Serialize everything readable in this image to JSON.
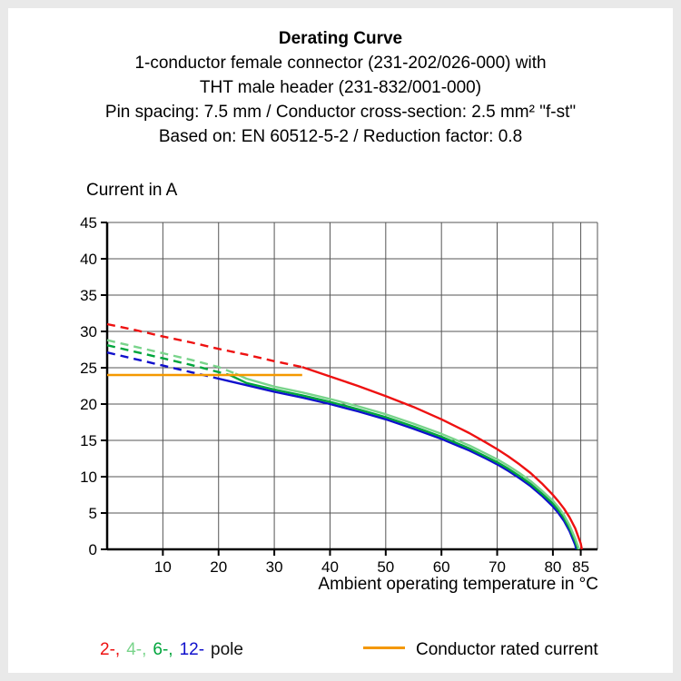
{
  "header": {
    "title": "Derating Curve",
    "lines": [
      "1-conductor female connector (231-202/026-000) with",
      "THT male header (231-832/001-000)",
      "Pin spacing: 7.5 mm / Conductor cross-section: 2.5 mm² \"f-st\"",
      "Based on: EN 60512-5-2 / Reduction factor: 0.8"
    ]
  },
  "chart_data": {
    "type": "line",
    "ylabel": "Current in A",
    "xlabel": "Ambient operating temperature in °C",
    "xlim": [
      0,
      88
    ],
    "ylim": [
      0,
      45
    ],
    "xticks": [
      10,
      20,
      30,
      40,
      50,
      60,
      70,
      80,
      85
    ],
    "yticks": [
      0,
      5,
      10,
      15,
      20,
      25,
      30,
      35,
      40,
      45
    ],
    "grid": true,
    "axis_color": "#000000",
    "grid_color": "#555555",
    "conductor_rated_current_A": 24,
    "series": [
      {
        "name": "12-pole (dashed, above rated current)",
        "color": "#1010cc",
        "dash": true,
        "points": [
          [
            0,
            27.1
          ],
          [
            5,
            26.2
          ],
          [
            10,
            25.3
          ],
          [
            15,
            24.4
          ],
          [
            20,
            23.5
          ]
        ]
      },
      {
        "name": "12-pole",
        "color": "#1010cc",
        "dash": false,
        "points": [
          [
            20,
            23.5
          ],
          [
            25,
            22.6
          ],
          [
            30,
            21.7
          ],
          [
            35,
            20.9
          ],
          [
            40,
            20.0
          ],
          [
            45,
            19.0
          ],
          [
            50,
            17.9
          ],
          [
            55,
            16.6
          ],
          [
            60,
            15.2
          ],
          [
            65,
            13.6
          ],
          [
            68,
            12.5
          ],
          [
            70,
            11.7
          ],
          [
            72,
            10.8
          ],
          [
            74,
            9.8
          ],
          [
            76,
            8.7
          ],
          [
            78,
            7.4
          ],
          [
            80,
            5.9
          ],
          [
            81,
            5.0
          ],
          [
            82,
            3.9
          ],
          [
            83,
            2.5
          ],
          [
            84,
            0.6
          ],
          [
            84.2,
            0
          ]
        ]
      },
      {
        "name": "6-pole (dashed, above rated current)",
        "color": "#00a53c",
        "dash": true,
        "points": [
          [
            0,
            28.1
          ],
          [
            5,
            27.2
          ],
          [
            10,
            26.3
          ],
          [
            15,
            25.4
          ],
          [
            20,
            24.4
          ],
          [
            22,
            24.0
          ]
        ]
      },
      {
        "name": "6-pole",
        "color": "#00a53c",
        "dash": false,
        "points": [
          [
            22,
            24.0
          ],
          [
            25,
            22.9
          ],
          [
            30,
            22.0
          ],
          [
            35,
            21.2
          ],
          [
            40,
            20.3
          ],
          [
            45,
            19.3
          ],
          [
            50,
            18.2
          ],
          [
            55,
            16.9
          ],
          [
            60,
            15.5
          ],
          [
            65,
            13.9
          ],
          [
            70,
            12.0
          ],
          [
            72,
            11.1
          ],
          [
            74,
            10.1
          ],
          [
            76,
            9.0
          ],
          [
            78,
            7.7
          ],
          [
            80,
            6.3
          ],
          [
            81,
            5.4
          ],
          [
            82,
            4.3
          ],
          [
            83,
            2.9
          ],
          [
            84,
            1.1
          ],
          [
            84.5,
            0
          ]
        ]
      },
      {
        "name": "4-pole (dashed, above rated current)",
        "color": "#79d48b",
        "dash": true,
        "points": [
          [
            0,
            28.8
          ],
          [
            5,
            27.9
          ],
          [
            10,
            27.0
          ],
          [
            15,
            26.1
          ],
          [
            20,
            25.1
          ],
          [
            23,
            24.2
          ]
        ]
      },
      {
        "name": "4-pole",
        "color": "#79d48b",
        "dash": false,
        "points": [
          [
            23,
            24.2
          ],
          [
            25,
            23.5
          ],
          [
            30,
            22.4
          ],
          [
            35,
            21.6
          ],
          [
            40,
            20.7
          ],
          [
            45,
            19.7
          ],
          [
            50,
            18.6
          ],
          [
            55,
            17.3
          ],
          [
            60,
            15.9
          ],
          [
            65,
            14.3
          ],
          [
            70,
            12.4
          ],
          [
            72,
            11.5
          ],
          [
            74,
            10.5
          ],
          [
            76,
            9.4
          ],
          [
            78,
            8.1
          ],
          [
            80,
            6.7
          ],
          [
            81,
            5.8
          ],
          [
            82,
            4.7
          ],
          [
            83,
            3.3
          ],
          [
            84,
            1.5
          ],
          [
            84.7,
            0
          ]
        ]
      },
      {
        "name": "2-pole (dashed, above rated current)",
        "color": "#ee1111",
        "dash": true,
        "points": [
          [
            0,
            31.0
          ],
          [
            5,
            30.2
          ],
          [
            10,
            29.3
          ],
          [
            15,
            28.5
          ],
          [
            20,
            27.6
          ],
          [
            25,
            26.8
          ],
          [
            30,
            25.9
          ],
          [
            35,
            25.1
          ]
        ]
      },
      {
        "name": "2-pole",
        "color": "#ee1111",
        "dash": false,
        "points": [
          [
            35,
            25.1
          ],
          [
            40,
            23.8
          ],
          [
            45,
            22.5
          ],
          [
            50,
            21.1
          ],
          [
            55,
            19.6
          ],
          [
            60,
            17.9
          ],
          [
            65,
            16.0
          ],
          [
            68,
            14.7
          ],
          [
            70,
            13.8
          ],
          [
            72,
            12.8
          ],
          [
            74,
            11.7
          ],
          [
            76,
            10.5
          ],
          [
            78,
            9.1
          ],
          [
            80,
            7.5
          ],
          [
            81,
            6.6
          ],
          [
            82,
            5.6
          ],
          [
            83,
            4.4
          ],
          [
            84,
            2.9
          ],
          [
            85,
            0.8
          ],
          [
            85.2,
            0
          ]
        ]
      },
      {
        "name": "Conductor rated current",
        "color": "#f49800",
        "dash": false,
        "points": [
          [
            0,
            24
          ],
          [
            35,
            24
          ]
        ]
      }
    ]
  },
  "legend": {
    "pole_items": [
      {
        "label": "2-,",
        "color": "#ee1111"
      },
      {
        "label": "4-,",
        "color": "#79d48b"
      },
      {
        "label": "6-,",
        "color": "#00a53c"
      },
      {
        "label": "12-",
        "color": "#1010cc"
      },
      {
        "label": "pole",
        "color": "#111111"
      }
    ],
    "rated": {
      "label": "Conductor rated current",
      "color": "#f49800"
    }
  }
}
